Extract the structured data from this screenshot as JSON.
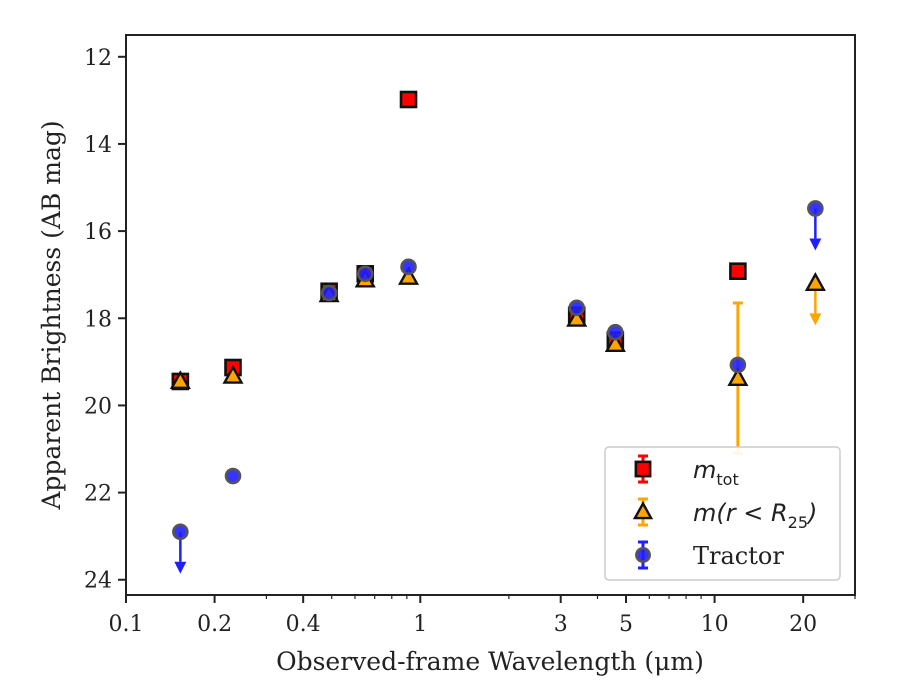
{
  "chart_data": {
    "type": "scatter",
    "title": "",
    "xlabel": "Observed-frame Wavelength (μm)",
    "ylabel": "Apparent Brightness (AB mag)",
    "xscale": "log",
    "xlim": [
      0.1,
      30
    ],
    "ylim": [
      24.35,
      11.5
    ],
    "y_inverted": true,
    "xticks": [
      {
        "value": 0.1,
        "label": "0.1"
      },
      {
        "value": 0.2,
        "label": "0.2"
      },
      {
        "value": 0.4,
        "label": "0.4"
      },
      {
        "value": 1,
        "label": "1"
      },
      {
        "value": 3,
        "label": "3"
      },
      {
        "value": 5,
        "label": "5"
      },
      {
        "value": 10,
        "label": "10"
      },
      {
        "value": 20,
        "label": "20"
      }
    ],
    "yticks": [
      {
        "value": 12,
        "label": "12"
      },
      {
        "value": 14,
        "label": "14"
      },
      {
        "value": 16,
        "label": "16"
      },
      {
        "value": 18,
        "label": "18"
      },
      {
        "value": 20,
        "label": "20"
      },
      {
        "value": 22,
        "label": "22"
      },
      {
        "value": 24,
        "label": "24"
      }
    ],
    "grid": false,
    "legend_position": "lower-right",
    "series": [
      {
        "name": "m_tot",
        "legend_label": {
          "main": "m",
          "sub": "tot",
          "rest": ""
        },
        "marker": "square",
        "color": "#ff0000",
        "points": [
          {
            "x": 0.153,
            "y": 19.45
          },
          {
            "x": 0.231,
            "y": 19.13
          },
          {
            "x": 0.49,
            "y": 17.38
          },
          {
            "x": 0.65,
            "y": 16.98
          },
          {
            "x": 0.912,
            "y": 12.98
          },
          {
            "x": 3.4,
            "y": 17.93
          },
          {
            "x": 4.6,
            "y": 18.5
          },
          {
            "x": 12.0,
            "y": 16.92
          }
        ]
      },
      {
        "name": "m(r < R25)",
        "legend_label": {
          "main": "m(r < R",
          "sub": "25",
          "rest": ")"
        },
        "marker": "triangle",
        "color": "#ffa500",
        "points": [
          {
            "x": 0.153,
            "y": 19.45
          },
          {
            "x": 0.231,
            "y": 19.33
          },
          {
            "x": 0.49,
            "y": 17.46
          },
          {
            "x": 0.65,
            "y": 17.12
          },
          {
            "x": 0.912,
            "y": 17.06
          },
          {
            "x": 3.4,
            "y": 18.02
          },
          {
            "x": 4.6,
            "y": 18.6
          },
          {
            "x": 12.0,
            "y": 19.38,
            "yerr_low": 17.65,
            "yerr_high": 21.1
          },
          {
            "x": 22.0,
            "y": 17.2,
            "upper_limit": true
          }
        ]
      },
      {
        "name": "Tractor",
        "legend_label": {
          "main": "Tractor",
          "sub": "",
          "rest": ""
        },
        "marker": "circle",
        "color": "#1f1fff",
        "points": [
          {
            "x": 0.153,
            "y": 22.9,
            "upper_limit": true
          },
          {
            "x": 0.231,
            "y": 21.62
          },
          {
            "x": 0.49,
            "y": 17.42
          },
          {
            "x": 0.65,
            "y": 16.98
          },
          {
            "x": 0.912,
            "y": 16.82
          },
          {
            "x": 3.4,
            "y": 17.76
          },
          {
            "x": 4.6,
            "y": 18.32
          },
          {
            "x": 12.0,
            "y": 19.07
          },
          {
            "x": 22.0,
            "y": 15.48,
            "upper_limit": true
          }
        ]
      }
    ]
  }
}
